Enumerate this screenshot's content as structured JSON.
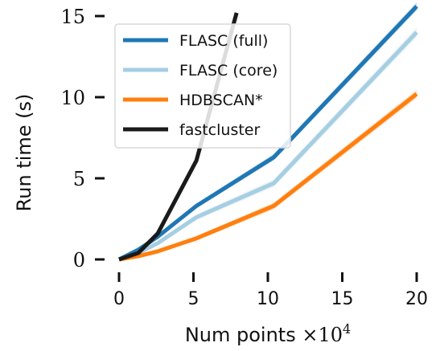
{
  "chart_data": {
    "type": "line",
    "xlabel": "Num points",
    "xlabel_suffix": "×10",
    "xlabel_exponent": "4",
    "ylabel": "Run time (s)",
    "xlim": [
      0,
      20
    ],
    "ylim": [
      0,
      15
    ],
    "xticks": [
      0,
      5,
      10,
      15,
      20
    ],
    "xtick_labels": [
      "0",
      "5",
      "10",
      "15",
      "20"
    ],
    "yticks": [
      0,
      5,
      10,
      15
    ],
    "ytick_labels": [
      "0",
      "5",
      "10",
      "15"
    ],
    "grid": false,
    "legend_position": "top-left",
    "series": [
      {
        "name": "FLASC (full)",
        "color": "#1f77b4",
        "x": [
          0,
          1.3,
          2.6,
          5.2,
          10.4,
          20
        ],
        "y": [
          0,
          0.6,
          1.4,
          3.3,
          6.3,
          15.6
        ],
        "band": 0.25
      },
      {
        "name": "FLASC (core)",
        "color": "#a6cee3",
        "x": [
          0,
          1.3,
          2.6,
          5.2,
          10.4,
          20
        ],
        "y": [
          0,
          0.4,
          1.0,
          2.6,
          4.7,
          14.0
        ],
        "band": 0.3
      },
      {
        "name": "HDBSCAN*",
        "color": "#ff7f0e",
        "x": [
          0,
          1.3,
          2.6,
          5.2,
          10.4,
          20
        ],
        "y": [
          0,
          0.2,
          0.5,
          1.3,
          3.3,
          10.2
        ],
        "band": 0.25
      },
      {
        "name": "fastcluster",
        "color": "#1a1a1a",
        "x": [
          0,
          1.3,
          2.6,
          5.2,
          7.9
        ],
        "y": [
          0,
          0.4,
          1.6,
          6.1,
          15.2
        ],
        "band": 0
      }
    ]
  }
}
